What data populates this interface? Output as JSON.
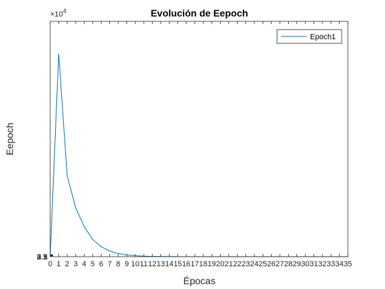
{
  "chart_data": {
    "type": "line",
    "title": "Evolución de Eepoch",
    "xlabel": "Épocas",
    "ylabel": "Eepoch",
    "exponent_label": "×10",
    "exponent_power": "4",
    "xlim": [
      0,
      35
    ],
    "ylim": [
      0,
      40000
    ],
    "x_ticks": [
      0,
      1,
      2,
      3,
      4,
      5,
      6,
      7,
      8,
      9,
      10,
      11,
      12,
      13,
      14,
      15,
      16,
      17,
      18,
      19,
      20,
      21,
      22,
      23,
      24,
      25,
      26,
      27,
      28,
      29,
      30,
      31,
      32,
      33,
      34,
      35
    ],
    "y_tick_labels": [
      "0.5",
      "1",
      "1.5",
      "2",
      "2.5",
      "3",
      "3.5"
    ],
    "legend_position": "top-right",
    "grid": false,
    "series": [
      {
        "name": "Epoch1",
        "color": "#0072BD",
        "x": [
          0,
          1,
          2,
          3,
          4,
          5,
          6,
          7,
          8,
          9,
          10,
          11,
          12,
          13,
          14,
          15,
          16,
          17,
          18,
          19,
          20,
          21,
          22,
          23,
          24,
          25,
          26,
          27,
          28,
          29,
          30,
          31,
          32,
          33,
          34,
          35
        ],
        "y": [
          0,
          34500,
          13700,
          8300,
          5100,
          2900,
          1700,
          950,
          520,
          290,
          160,
          90,
          50,
          25,
          12,
          6,
          3,
          1,
          0,
          0,
          0,
          0,
          0,
          0,
          0,
          0,
          0,
          0,
          0,
          0,
          0,
          0,
          0,
          0,
          0,
          0
        ]
      }
    ]
  }
}
